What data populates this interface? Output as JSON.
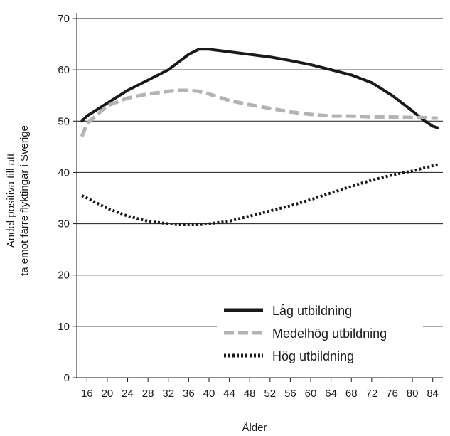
{
  "chart_data": {
    "type": "line",
    "title": "",
    "xlabel": "Ålder",
    "ylabel_lines": [
      "Andel positiva till att",
      "ta emot färre flyktingar i Sverige"
    ],
    "x_ticks": [
      16,
      20,
      24,
      28,
      32,
      36,
      40,
      44,
      48,
      52,
      56,
      60,
      64,
      68,
      72,
      76,
      80,
      84
    ],
    "xlim": [
      14,
      86
    ],
    "ylim": [
      0,
      70
    ],
    "y_ticks": [
      0,
      10,
      20,
      30,
      40,
      50,
      60,
      70
    ],
    "grid": "horizontal",
    "legend_position": "bottom-right",
    "x": [
      15,
      16,
      20,
      24,
      28,
      32,
      34,
      36,
      38,
      40,
      44,
      48,
      52,
      56,
      60,
      64,
      68,
      72,
      76,
      80,
      82,
      84,
      85
    ],
    "series": [
      {
        "name": "Låg utbildning",
        "color": "#1a1a1a",
        "style": "solid",
        "values": [
          50.0,
          51.0,
          53.5,
          56.0,
          58.0,
          60.0,
          61.5,
          63.0,
          64.0,
          64.0,
          63.5,
          63.0,
          62.5,
          61.8,
          61.0,
          60.0,
          59.0,
          57.5,
          55.0,
          52.0,
          50.3,
          49.0,
          48.7
        ]
      },
      {
        "name": "Medelhög utbildning",
        "color": "#b3b3b3",
        "style": "dashed",
        "values": [
          47.0,
          49.5,
          53.0,
          54.5,
          55.3,
          55.8,
          56.0,
          56.0,
          55.8,
          55.3,
          54.0,
          53.2,
          52.5,
          51.8,
          51.3,
          51.0,
          51.0,
          50.8,
          50.8,
          50.7,
          50.7,
          50.6,
          50.6
        ]
      },
      {
        "name": "Hög utbildning",
        "color": "#1a1a1a",
        "style": "dotted",
        "values": [
          35.5,
          35.0,
          33.0,
          31.5,
          30.5,
          30.0,
          29.8,
          29.8,
          29.8,
          30.0,
          30.5,
          31.5,
          32.5,
          33.5,
          34.7,
          36.0,
          37.3,
          38.5,
          39.5,
          40.3,
          40.8,
          41.3,
          41.5
        ]
      }
    ]
  }
}
